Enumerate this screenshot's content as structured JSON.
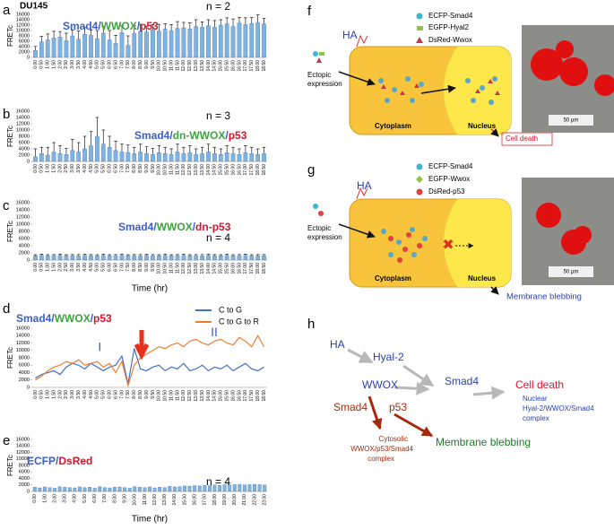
{
  "chart_data": [
    {
      "type": "bar",
      "panel": "a",
      "label": "DU145",
      "annotation": "n = 2",
      "title": [
        {
          "text": "Smad4",
          "color": "#3a5fcd"
        },
        {
          "text": "/",
          "color": "#3a5fcd"
        },
        {
          "text": "WWOX",
          "color": "#3aa63a"
        },
        {
          "text": "/",
          "color": "#3a5fcd"
        },
        {
          "text": "p53",
          "color": "#d8142a"
        }
      ],
      "ylabel": "FRETc",
      "color": "#7fb2e0",
      "categories": [
        "0.00",
        "0.50",
        "1.00",
        "1.50",
        "2.00",
        "2.50",
        "3.00",
        "3.50",
        "4.00",
        "4.50",
        "5.00",
        "5.50",
        "6.00",
        "6.50",
        "7.00",
        "7.50",
        "8.00",
        "8.50",
        "9.00",
        "9.50",
        "10.00",
        "10.50",
        "11.00",
        "11.50",
        "12.00",
        "12.50",
        "13.00",
        "13.50",
        "14.00",
        "14.50",
        "15.00",
        "15.50",
        "16.00",
        "16.50",
        "17.00",
        "17.50",
        "18.00",
        "18.50"
      ],
      "values": [
        2600,
        5800,
        6500,
        7200,
        7600,
        6200,
        8000,
        6800,
        8600,
        8200,
        7000,
        9000,
        6500,
        5200,
        9200,
        4500,
        9000,
        9800,
        9400,
        10200,
        9800,
        10500,
        10000,
        10800,
        11000,
        10600,
        11500,
        11200,
        11800,
        11200,
        12000,
        12500,
        11500,
        12800,
        12200,
        12600,
        13000,
        12500
      ],
      "errors": [
        1500,
        2000,
        2200,
        2500,
        2000,
        2800,
        2200,
        3000,
        2500,
        2000,
        3000,
        2500,
        3500,
        3000,
        2500,
        3500,
        2800,
        2500,
        2200,
        2000,
        2500,
        2000,
        2200,
        2500,
        2000,
        2200,
        2500,
        2000,
        2200,
        2500,
        2000,
        2200,
        2800,
        2000,
        2500,
        2200,
        2800,
        2000
      ],
      "ylim": [
        0,
        16000
      ],
      "yticks": [
        0,
        2000,
        4000,
        6000,
        8000,
        10000,
        12000,
        14000,
        16000
      ]
    },
    {
      "type": "bar",
      "panel": "b",
      "annotation": "n = 3",
      "title": [
        {
          "text": "Smad4",
          "color": "#3a5fcd"
        },
        {
          "text": "/",
          "color": "#3a5fcd"
        },
        {
          "text": "dn-WWOX",
          "color": "#3aa63a"
        },
        {
          "text": "/",
          "color": "#3a5fcd"
        },
        {
          "text": "p53",
          "color": "#d8142a"
        }
      ],
      "ylabel": "FRETc",
      "color": "#7fb2e0",
      "categories": [
        "0.00",
        "0.50",
        "1.00",
        "1.50",
        "2.00",
        "2.50",
        "3.00",
        "3.50",
        "4.00",
        "4.50",
        "5.00",
        "5.50",
        "6.00",
        "6.50",
        "7.00",
        "7.50",
        "8.00",
        "8.50",
        "9.00",
        "9.50",
        "10.00",
        "10.50",
        "11.00",
        "11.50",
        "12.00",
        "12.50",
        "13.00",
        "13.50",
        "14.00",
        "14.50",
        "15.00",
        "15.50",
        "16.00",
        "16.50",
        "17.00",
        "17.50",
        "18.00",
        "18.50"
      ],
      "values": [
        1500,
        2500,
        2000,
        3000,
        2500,
        2200,
        3500,
        3000,
        4000,
        5000,
        8000,
        5500,
        4500,
        3500,
        3000,
        2800,
        2500,
        3000,
        2500,
        2200,
        2800,
        2500,
        2200,
        3000,
        2500,
        2800,
        2200,
        2500,
        3000,
        2500,
        2200,
        2800,
        2500,
        2200,
        2800,
        2500,
        2200,
        2500
      ],
      "errors": [
        2500,
        2000,
        2500,
        3000,
        2500,
        2000,
        3500,
        3000,
        4000,
        4500,
        6000,
        4500,
        3500,
        3000,
        2500,
        2500,
        2000,
        2500,
        2200,
        2000,
        2200,
        2000,
        1800,
        2500,
        2000,
        2200,
        1800,
        2000,
        2500,
        2000,
        1800,
        2200,
        2000,
        1800,
        2200,
        2000,
        1800,
        2000
      ],
      "ylim": [
        0,
        16000
      ],
      "yticks": [
        0,
        2000,
        4000,
        6000,
        8000,
        10000,
        12000,
        14000,
        16000
      ]
    },
    {
      "type": "bar",
      "panel": "c",
      "annotation": "n = 4",
      "xlabel": "Time (hr)",
      "title": [
        {
          "text": "Smad4",
          "color": "#3a5fcd"
        },
        {
          "text": "/",
          "color": "#3a5fcd"
        },
        {
          "text": "WWOX",
          "color": "#3aa63a"
        },
        {
          "text": "/",
          "color": "#3a5fcd"
        },
        {
          "text": "dn-p53",
          "color": "#d8142a"
        }
      ],
      "ylabel": "FRETc",
      "color": "#7fb2e0",
      "categories": [
        "0.00",
        "0.50",
        "1.00",
        "1.50",
        "2.00",
        "2.50",
        "3.00",
        "3.50",
        "4.00",
        "4.50",
        "5.00",
        "5.50",
        "6.00",
        "6.50",
        "7.00",
        "7.50",
        "8.00",
        "8.50",
        "9.00",
        "9.50",
        "10.00",
        "10.50",
        "11.00",
        "11.50",
        "12.00",
        "12.50",
        "13.00",
        "13.50",
        "14.00",
        "14.50",
        "15.00",
        "15.50",
        "16.00",
        "16.50",
        "17.00",
        "17.50",
        "18.00",
        "18.50"
      ],
      "values": [
        1200,
        1300,
        1200,
        1250,
        1300,
        1200,
        1250,
        1200,
        1300,
        1250,
        1200,
        1300,
        1200,
        1250,
        1300,
        1200,
        1250,
        1200,
        1300,
        1250,
        1200,
        1300,
        1200,
        1250,
        1300,
        1200,
        1250,
        1200,
        1300,
        1250,
        1200,
        1300,
        1200,
        1250,
        1300,
        1200,
        1250,
        1200
      ],
      "errors": [
        300,
        350,
        300,
        300,
        350,
        300,
        300,
        350,
        300,
        300,
        300,
        350,
        300,
        300,
        350,
        300,
        300,
        350,
        300,
        300,
        300,
        350,
        300,
        300,
        350,
        300,
        300,
        350,
        300,
        300,
        300,
        350,
        300,
        300,
        350,
        300,
        300,
        350
      ],
      "ylim": [
        0,
        16000
      ],
      "yticks": [
        0,
        2000,
        4000,
        6000,
        8000,
        10000,
        12000,
        14000,
        16000
      ]
    },
    {
      "type": "line",
      "panel": "d",
      "legend": "upper right",
      "title": [
        {
          "text": "Smad4",
          "color": "#3a5fcd"
        },
        {
          "text": "/",
          "color": "#3a5fcd"
        },
        {
          "text": "WWOX",
          "color": "#3aa63a"
        },
        {
          "text": "/",
          "color": "#3a5fcd"
        },
        {
          "text": "p53",
          "color": "#d8142a"
        }
      ],
      "annotations": [
        {
          "text": "I",
          "color": "#3a5fcd"
        },
        {
          "text": "II",
          "color": "#3a5fcd"
        }
      ],
      "ylabel": "FRETc",
      "categories": [
        "0.00",
        "0.50",
        "1.00",
        "1.50",
        "2.00",
        "2.50",
        "3.00",
        "3.50",
        "4.00",
        "4.50",
        "5.00",
        "5.50",
        "6.00",
        "6.50",
        "7.00",
        "7.50",
        "8.00",
        "8.50",
        "9.00",
        "9.50",
        "10.00",
        "10.50",
        "11.00",
        "11.50",
        "12.00",
        "12.50",
        "13.00",
        "13.50",
        "14.00",
        "14.50",
        "15.00",
        "15.50",
        "16.00",
        "16.50",
        "17.00",
        "17.50",
        "18.00",
        "18.50"
      ],
      "series": [
        {
          "name": "C to G",
          "color": "#4472c4",
          "values": [
            2500,
            3500,
            4000,
            4500,
            3500,
            5500,
            6500,
            6000,
            5000,
            6500,
            5500,
            4500,
            5500,
            6000,
            8500,
            1000,
            10500,
            5000,
            4500,
            5500,
            6000,
            4500,
            5500,
            5000,
            6500,
            4500,
            5000,
            6000,
            4500,
            5500,
            5000,
            6000,
            4500,
            5500,
            6500,
            5000,
            4500,
            5500
          ]
        },
        {
          "name": "C to G to R",
          "color": "#ed7d31",
          "values": [
            2000,
            3000,
            4500,
            5500,
            6000,
            7000,
            6500,
            7500,
            6000,
            6500,
            7000,
            5500,
            6500,
            4000,
            7000,
            500,
            6000,
            8000,
            9000,
            10000,
            11000,
            10500,
            11500,
            12000,
            11000,
            12500,
            13000,
            12000,
            11500,
            12500,
            13000,
            12000,
            11500,
            13500,
            12500,
            11000,
            14000,
            11000
          ]
        }
      ],
      "ylim": [
        0,
        16000
      ],
      "yticks": [
        0,
        2000,
        4000,
        6000,
        8000,
        10000,
        12000,
        14000,
        16000
      ]
    },
    {
      "type": "bar",
      "panel": "e",
      "annotation": "n = 4",
      "xlabel": "Time (hr)",
      "title": [
        {
          "text": "ECFP",
          "color": "#3a5fcd"
        },
        {
          "text": "/",
          "color": "#3a5fcd"
        },
        {
          "text": "DsRed",
          "color": "#d8142a"
        }
      ],
      "ylabel": "FRETc",
      "color": "#7fb2e0",
      "categories": [
        "0.00",
        null,
        "1.00",
        null,
        "2.00",
        null,
        "3.00",
        null,
        "4.00",
        null,
        "5.00",
        null,
        "6.00",
        null,
        "7.00",
        null,
        "8.00",
        null,
        "9.00",
        null,
        "10.00",
        null,
        "11.00",
        null,
        "12.00",
        null,
        "13.00",
        null,
        "14.00",
        null,
        "15.00",
        null,
        "16.00",
        null,
        "17.00",
        null,
        "18.00",
        null,
        "19.00",
        null,
        "20.00",
        null,
        "21.00",
        null,
        "22.00",
        null,
        "23.00"
      ],
      "values": [
        1300,
        1100,
        1400,
        1200,
        1000,
        1500,
        1300,
        1200,
        1100,
        1400,
        1200,
        1300,
        1000,
        1500,
        1200,
        1100,
        1300,
        1400,
        1200,
        1000,
        1500,
        1300,
        1200,
        1400,
        1100,
        1300,
        1200,
        1600,
        1400,
        1500,
        1700,
        1600,
        1800,
        1700,
        1900,
        1800,
        2000,
        1900,
        2100,
        2000,
        2100,
        2200,
        2000,
        2100,
        2200,
        2100,
        2000
      ],
      "ylim": [
        0,
        16000
      ],
      "yticks": [
        0,
        2000,
        4000,
        6000,
        8000,
        10000,
        12000,
        14000,
        16000
      ]
    }
  ],
  "panel_f": {
    "panel": "f",
    "ha": "HA",
    "legend": [
      "ECFP-Smad4",
      "EGFP-Hyal2",
      "DsRed-Wwox"
    ],
    "ectopic": [
      "Ectopic",
      "expression"
    ],
    "cytoplasm": "Cytoplasm",
    "nucleus": "Nucleus",
    "outcome": "Cell death",
    "scale": "50 µm"
  },
  "panel_g": {
    "panel": "g",
    "ha": "HA",
    "legend": [
      "ECFP-Smad4",
      "EGFP-Wwox",
      "DsRed-p53"
    ],
    "ectopic": [
      "Ectopic",
      "expression"
    ],
    "cytoplasm": "Cytoplasm",
    "nucleus": "Nucleus",
    "outcome": "Membrane blebbing",
    "scale": "50 µm"
  },
  "panel_h": {
    "panel": "h",
    "nodes": [
      "HA",
      "Hyal-2",
      "Smad4",
      "WWOX",
      "Cell death",
      "Smad4",
      "p53",
      "Membrane blebbing"
    ],
    "nuclear_complex": [
      "Nuclear",
      "Hyal-2/WWOX/Smad4",
      "complex"
    ],
    "cytosolic_complex": [
      "Cytosolic",
      "WWOX/p53/Smad4",
      "complex"
    ]
  }
}
